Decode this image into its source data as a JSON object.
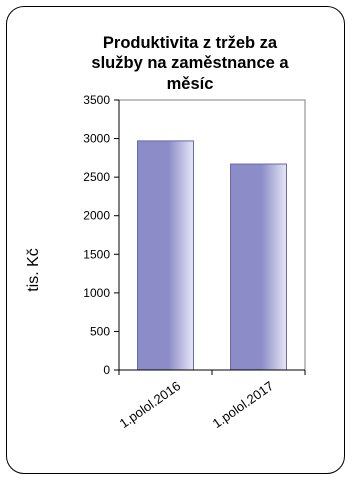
{
  "chart_data": {
    "type": "bar",
    "title_lines": [
      "Produktivita z tržeb za",
      "služby na zaměstnance a",
      "měsíc"
    ],
    "ylabel": "tis. Kč",
    "xlabel": "",
    "categories": [
      "1.polol.2016",
      "1.polol.2017"
    ],
    "values": [
      2970,
      2670
    ],
    "ylim": [
      0,
      3500
    ],
    "yticks": [
      0,
      500,
      1000,
      1500,
      2000,
      2500,
      3000,
      3500
    ],
    "grid": false,
    "legend": "none",
    "colors": {
      "bar_edge": "#6a6aa8",
      "bar_dark": "#8c8cc8",
      "bar_light": "#e6e6f6",
      "plot_border": "#808080",
      "axis": "#000000"
    }
  }
}
